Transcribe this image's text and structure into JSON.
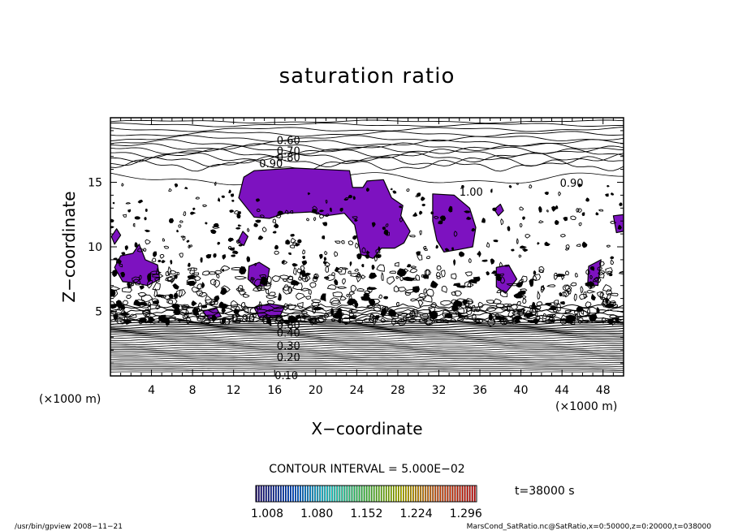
{
  "chart_data": {
    "type": "contour",
    "title": "saturation ratio",
    "xlabel": "X−coordinate",
    "ylabel": "Z−coordinate",
    "x_unit": "(×1000 m)",
    "z_unit": "(×1000 m)",
    "xlim": [
      0,
      50
    ],
    "ylim": [
      0,
      20
    ],
    "x_ticks": [
      4,
      8,
      12,
      16,
      20,
      24,
      28,
      32,
      36,
      40,
      44,
      48
    ],
    "y_ticks": [
      5,
      10,
      15
    ],
    "contour_interval": "CONTOUR INTERVAL = 5.000E−02",
    "time": "t=38000 s",
    "colorbar": {
      "labels": [
        "1.008",
        "1.080",
        "1.152",
        "1.224",
        "1.296"
      ],
      "colors": [
        "#12006b",
        "#0050d0",
        "#00c0c0",
        "#40c040",
        "#c0c000",
        "#c04000",
        "#c00000"
      ]
    },
    "fill_color": "#7d12c0",
    "contour_labels": [
      {
        "text": "0.60",
        "x": 16.2,
        "z": 18.2
      },
      {
        "text": "0.70",
        "x": 16.2,
        "z": 17.4
      },
      {
        "text": "0.80",
        "x": 16.2,
        "z": 16.9
      },
      {
        "text": "0.90",
        "x": 14.5,
        "z": 16.4
      },
      {
        "text": "1.00",
        "x": 34.0,
        "z": 14.2
      },
      {
        "text": "0.90",
        "x": 43.8,
        "z": 14.9
      },
      {
        "text": "0.90",
        "x": 11.8,
        "z": 4.4
      },
      {
        "text": "0.60",
        "x": 16.2,
        "z": 3.9
      },
      {
        "text": "0.40",
        "x": 16.2,
        "z": 3.3
      },
      {
        "text": "0.30",
        "x": 16.2,
        "z": 2.3
      },
      {
        "text": "0.20",
        "x": 16.2,
        "z": 1.4
      },
      {
        "text": "0.10",
        "x": 16.0,
        "z": 0.0
      }
    ],
    "saturated_regions": [
      [
        [
          12.5,
          13.8
        ],
        [
          13.0,
          15.4
        ],
        [
          14.0,
          15.9
        ],
        [
          18.0,
          16.1
        ],
        [
          23.3,
          15.9
        ],
        [
          23.6,
          14.6
        ],
        [
          24.6,
          14.6
        ],
        [
          25.0,
          15.1
        ],
        [
          26.6,
          15.2
        ],
        [
          27.4,
          13.8
        ],
        [
          28.5,
          13.2
        ],
        [
          28.3,
          12.4
        ],
        [
          29.2,
          11.2
        ],
        [
          28.6,
          10.3
        ],
        [
          27.7,
          9.9
        ],
        [
          26.4,
          9.9
        ],
        [
          25.6,
          9.1
        ],
        [
          24.4,
          9.4
        ],
        [
          23.8,
          11.7
        ],
        [
          22.8,
          12.6
        ],
        [
          21.0,
          12.4
        ],
        [
          19.5,
          12.7
        ],
        [
          17.0,
          12.6
        ],
        [
          15.5,
          12.2
        ],
        [
          14.0,
          12.3
        ]
      ],
      [
        [
          31.4,
          14.1
        ],
        [
          33.5,
          14.0
        ],
        [
          35.0,
          13.0
        ],
        [
          35.6,
          11.5
        ],
        [
          35.3,
          10.0
        ],
        [
          34.0,
          9.8
        ],
        [
          32.5,
          9.6
        ],
        [
          31.8,
          10.5
        ],
        [
          31.4,
          12.0
        ]
      ],
      [
        [
          0.4,
          8.4
        ],
        [
          1.0,
          9.3
        ],
        [
          2.2,
          9.5
        ],
        [
          2.8,
          10.2
        ],
        [
          3.4,
          9.0
        ],
        [
          4.6,
          8.6
        ],
        [
          4.8,
          7.5
        ],
        [
          3.6,
          7.0
        ],
        [
          2.4,
          7.2
        ],
        [
          1.2,
          7.3
        ]
      ],
      [
        [
          13.5,
          8.5
        ],
        [
          14.5,
          8.8
        ],
        [
          15.5,
          8.3
        ],
        [
          15.2,
          7.0
        ],
        [
          14.2,
          6.9
        ],
        [
          13.4,
          7.5
        ]
      ],
      [
        [
          9.0,
          5.0
        ],
        [
          10.3,
          5.3
        ],
        [
          10.8,
          4.6
        ],
        [
          9.6,
          4.4
        ]
      ],
      [
        [
          14.0,
          5.3
        ],
        [
          15.5,
          5.6
        ],
        [
          17.0,
          5.4
        ],
        [
          16.5,
          4.6
        ],
        [
          14.5,
          4.5
        ]
      ],
      [
        [
          37.6,
          8.4
        ],
        [
          38.8,
          8.6
        ],
        [
          39.6,
          7.5
        ],
        [
          38.5,
          6.4
        ],
        [
          37.6,
          6.9
        ]
      ],
      [
        [
          46.6,
          8.5
        ],
        [
          47.8,
          9.0
        ],
        [
          47.5,
          7.0
        ],
        [
          46.5,
          7.1
        ]
      ],
      [
        [
          49.0,
          12.4
        ],
        [
          50.0,
          12.5
        ],
        [
          50.0,
          11.2
        ],
        [
          49.3,
          11.1
        ]
      ],
      [
        [
          0.1,
          10.8
        ],
        [
          0.6,
          11.4
        ],
        [
          1.0,
          10.9
        ],
        [
          0.4,
          10.2
        ]
      ],
      [
        [
          12.4,
          10.4
        ],
        [
          12.9,
          11.2
        ],
        [
          13.4,
          10.8
        ],
        [
          13.0,
          10.1
        ]
      ],
      [
        [
          37.4,
          12.9
        ],
        [
          38.0,
          13.3
        ],
        [
          38.3,
          12.8
        ],
        [
          37.8,
          12.4
        ]
      ]
    ]
  },
  "footer": {
    "left": "/usr/bin/gpview  2008−11−21",
    "right": "MarsCond_SatRatio.nc@SatRatio,x=0:50000,z=0:20000,t=038000"
  }
}
